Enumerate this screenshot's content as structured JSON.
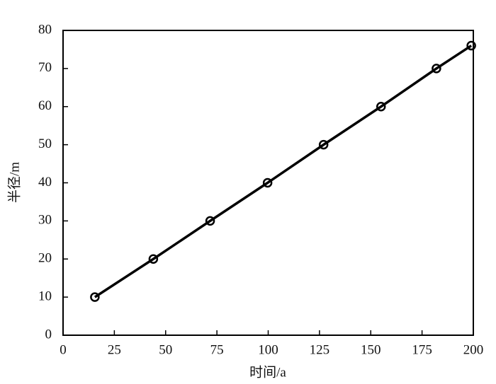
{
  "chart_data": {
    "type": "line",
    "x_label": "时间/a",
    "y_label": "半径/m",
    "x": [
      15.5,
      44,
      71.7,
      99.7,
      127,
      155,
      182,
      199
    ],
    "series": [
      {
        "color": "#000000",
        "values": [
          10,
          20,
          30,
          40,
          50,
          60,
          70,
          76
        ]
      }
    ],
    "xlim": [
      0,
      200
    ],
    "xticks": [
      0,
      25,
      50,
      75,
      100,
      125,
      150,
      175,
      200
    ],
    "ylim": [
      0,
      80
    ],
    "yticks": [
      0,
      10,
      20,
      30,
      40,
      50,
      60,
      70,
      80
    ],
    "markers": "circle",
    "grid": false
  }
}
